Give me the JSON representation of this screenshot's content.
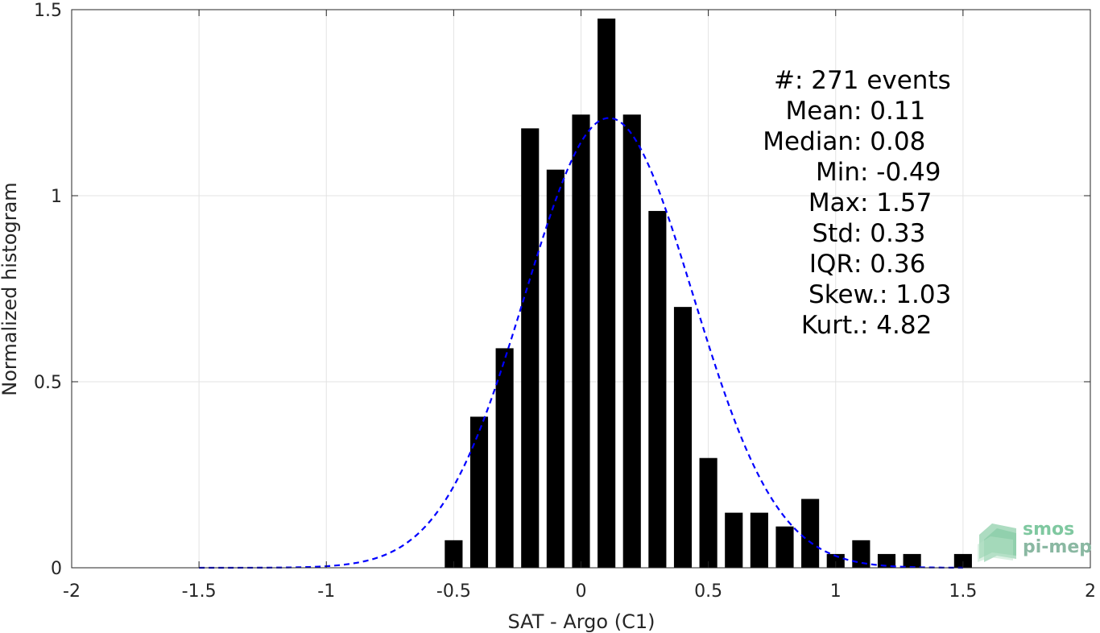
{
  "chart_data": {
    "type": "bar",
    "xlabel": "SAT - Argo (C1)",
    "ylabel": "Normalized histogram",
    "xlim": [
      -2,
      2
    ],
    "ylim": [
      0,
      1.5
    ],
    "xticks": [
      -2,
      -1.5,
      -1,
      -0.5,
      0,
      0.5,
      1,
      1.5,
      2
    ],
    "xtick_labels": [
      "-2",
      "-1.5",
      "-1",
      "-0.5",
      "0",
      "0.5",
      "1",
      "1.5",
      "2"
    ],
    "yticks": [
      0,
      0.5,
      1,
      1.5
    ],
    "ytick_labels": [
      "0",
      "0.5",
      "1",
      "1.5"
    ],
    "grid": true,
    "bar_width": 0.07,
    "bins": [
      -0.5,
      -0.4,
      -0.3,
      -0.2,
      -0.1,
      0.0,
      0.1,
      0.2,
      0.3,
      0.4,
      0.5,
      0.6,
      0.7,
      0.8,
      0.9,
      1.0,
      1.1,
      1.2,
      1.3,
      1.5
    ],
    "values": [
      0.074,
      0.406,
      0.59,
      1.181,
      1.07,
      1.218,
      1.476,
      1.218,
      0.959,
      0.701,
      0.295,
      0.148,
      0.148,
      0.111,
      0.185,
      0.037,
      0.074,
      0.037,
      0.037,
      0.037
    ],
    "bar_color": "#000000",
    "fit": {
      "type": "gaussian",
      "mean": 0.11,
      "std": 0.33,
      "x_range": [
        -1.5,
        1.5
      ],
      "color": "#0000ff",
      "style": "dashed"
    }
  },
  "stats": [
    {
      "label": "#  ",
      "value": ": 271 events"
    },
    {
      "label": "Mean ",
      "value": ": 0.11"
    },
    {
      "label": "Median ",
      "value": ": 0.08"
    },
    {
      "label": "Min ",
      "value": ": -0.49"
    },
    {
      "label": "Max ",
      "value": ": 1.57"
    },
    {
      "label": "Std ",
      "value": ": 0.33"
    },
    {
      "label": "IQR ",
      "value": ": 0.36"
    },
    {
      "label": "Skew. ",
      "value": ": 1.03"
    },
    {
      "label": "Kurt. ",
      "value": ": 4.82"
    }
  ],
  "logo": {
    "line1": "smos",
    "line2": "pi-mep",
    "color1": "#7fc8a0",
    "color2": "#8ab8a2"
  }
}
